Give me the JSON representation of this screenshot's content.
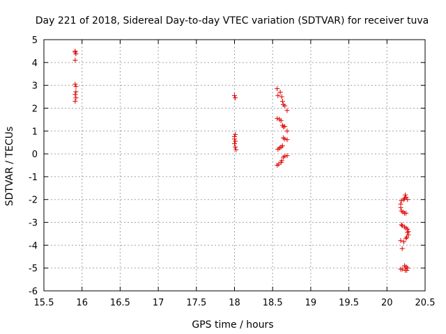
{
  "chart_data": {
    "type": "scatter",
    "title": "Day 221 of 2018, Sidereal Day-to-day VTEC variation (SDTVAR) for receiver tuva",
    "xlabel": "GPS time / hours",
    "ylabel": "SDTVAR / TECUs",
    "xlim": [
      15.5,
      20.5
    ],
    "ylim": [
      -6,
      5
    ],
    "xticks": [
      15.5,
      16,
      16.5,
      17,
      17.5,
      18,
      18.5,
      19,
      19.5,
      20,
      20.5
    ],
    "xtick_labels": [
      "15.5",
      "16",
      "16.5",
      "17",
      "17.5",
      "18",
      "18.5",
      "19",
      "19.5",
      "20",
      "20.5"
    ],
    "yticks": [
      5,
      4,
      3,
      2,
      1,
      0,
      -1,
      -2,
      -3,
      -4,
      -5,
      -6
    ],
    "ytick_labels": [
      "5",
      "4",
      "3",
      "2",
      "1",
      "0",
      "-1",
      "-2",
      "-3",
      "-4",
      "-5",
      "-6"
    ],
    "grid": true,
    "marker": "+",
    "color": "#dd0000",
    "series": [
      {
        "name": "SDTVAR",
        "points": [
          [
            15.91,
            4.5
          ],
          [
            15.91,
            4.45
          ],
          [
            15.92,
            4.38
          ],
          [
            15.91,
            4.1
          ],
          [
            15.91,
            3.05
          ],
          [
            15.92,
            2.95
          ],
          [
            15.92,
            2.72
          ],
          [
            15.91,
            2.6
          ],
          [
            15.92,
            2.45
          ],
          [
            15.91,
            2.3
          ],
          [
            18.0,
            2.55
          ],
          [
            18.01,
            2.45
          ],
          [
            18.01,
            0.85
          ],
          [
            18.0,
            0.75
          ],
          [
            18.0,
            0.65
          ],
          [
            18.01,
            0.55
          ],
          [
            18.0,
            0.45
          ],
          [
            18.01,
            0.3
          ],
          [
            18.02,
            0.18
          ],
          [
            18.56,
            2.85
          ],
          [
            18.57,
            2.55
          ],
          [
            18.6,
            2.7
          ],
          [
            18.62,
            2.5
          ],
          [
            18.63,
            2.3
          ],
          [
            18.64,
            2.15
          ],
          [
            18.66,
            2.1
          ],
          [
            18.69,
            1.9
          ],
          [
            18.56,
            1.55
          ],
          [
            18.59,
            1.52
          ],
          [
            18.61,
            1.45
          ],
          [
            18.63,
            1.25
          ],
          [
            18.64,
            1.18
          ],
          [
            18.66,
            1.2
          ],
          [
            18.69,
            1.0
          ],
          [
            18.64,
            0.7
          ],
          [
            18.66,
            0.65
          ],
          [
            18.69,
            0.62
          ],
          [
            18.57,
            0.2
          ],
          [
            18.59,
            0.25
          ],
          [
            18.61,
            0.3
          ],
          [
            18.63,
            0.35
          ],
          [
            18.64,
            -0.15
          ],
          [
            18.66,
            -0.1
          ],
          [
            18.69,
            -0.08
          ],
          [
            18.62,
            -0.3
          ],
          [
            18.61,
            -0.38
          ],
          [
            18.58,
            -0.45
          ],
          [
            18.56,
            -0.5
          ],
          [
            20.24,
            -1.8
          ],
          [
            20.25,
            -1.9
          ],
          [
            20.23,
            -1.95
          ],
          [
            20.27,
            -2.0
          ],
          [
            20.22,
            -2.0
          ],
          [
            20.19,
            -2.05
          ],
          [
            20.18,
            -2.2
          ],
          [
            20.18,
            -2.35
          ],
          [
            20.19,
            -2.5
          ],
          [
            20.21,
            -2.55
          ],
          [
            20.23,
            -2.6
          ],
          [
            20.25,
            -2.6
          ],
          [
            20.19,
            -3.1
          ],
          [
            20.2,
            -3.15
          ],
          [
            20.23,
            -3.2
          ],
          [
            20.25,
            -3.25
          ],
          [
            20.27,
            -3.3
          ],
          [
            20.28,
            -3.4
          ],
          [
            20.27,
            -3.45
          ],
          [
            20.28,
            -3.55
          ],
          [
            20.26,
            -3.65
          ],
          [
            20.25,
            -3.7
          ],
          [
            20.22,
            -3.85
          ],
          [
            20.18,
            -3.8
          ],
          [
            20.2,
            -4.15
          ],
          [
            20.23,
            -4.9
          ],
          [
            20.25,
            -4.95
          ],
          [
            20.27,
            -5.0
          ],
          [
            20.24,
            -5.1
          ],
          [
            20.2,
            -5.05
          ],
          [
            20.18,
            -5.05
          ],
          [
            20.26,
            -5.1
          ]
        ]
      }
    ]
  }
}
